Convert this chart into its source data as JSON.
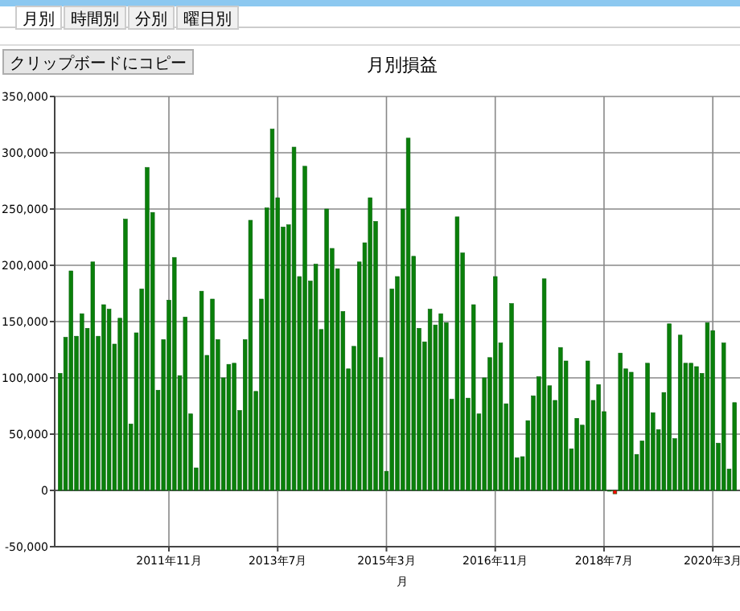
{
  "chart_data": {
    "type": "bar",
    "title": "月別損益",
    "xlabel": "月",
    "annotations": [
      "月別",
      "時間別",
      "分別",
      "曜日別",
      "クリップボードにコピー"
    ],
    "x": [
      "2010-03",
      "2010-04",
      "2010-05",
      "2010-06",
      "2010-07",
      "2010-08",
      "2010-09",
      "2010-10",
      "2010-11",
      "2010-12",
      "2011-01",
      "2011-02",
      "2011-03",
      "2011-04",
      "2011-05",
      "2011-06",
      "2011-07",
      "2011-08",
      "2011-09",
      "2011-10",
      "2011-11",
      "2011-12",
      "2012-01",
      "2012-02",
      "2012-03",
      "2012-04",
      "2012-05",
      "2012-06",
      "2012-07",
      "2012-08",
      "2012-09",
      "2012-10",
      "2012-11",
      "2012-12",
      "2013-01",
      "2013-02",
      "2013-03",
      "2013-04",
      "2013-05",
      "2013-06",
      "2013-07",
      "2013-08",
      "2013-09",
      "2013-10",
      "2013-11",
      "2013-12",
      "2014-01",
      "2014-02",
      "2014-03",
      "2014-04",
      "2014-05",
      "2014-06",
      "2014-07",
      "2014-08",
      "2014-09",
      "2014-10",
      "2014-11",
      "2014-12",
      "2015-01",
      "2015-02",
      "2015-03",
      "2015-04",
      "2015-05",
      "2015-06",
      "2015-07",
      "2015-08",
      "2015-09",
      "2015-10",
      "2015-11",
      "2015-12",
      "2016-01",
      "2016-02",
      "2016-03",
      "2016-04",
      "2016-05",
      "2016-06",
      "2016-07",
      "2016-08",
      "2016-09",
      "2016-10",
      "2016-11",
      "2016-12",
      "2017-01",
      "2017-02",
      "2017-03",
      "2017-04",
      "2017-05",
      "2017-06",
      "2017-07",
      "2017-08",
      "2017-09",
      "2017-10",
      "2017-11",
      "2017-12",
      "2018-01",
      "2018-02",
      "2018-03",
      "2018-04",
      "2018-05",
      "2018-06",
      "2018-07",
      "2018-08",
      "2018-09",
      "2018-10",
      "2018-11",
      "2018-12",
      "2019-01",
      "2019-02",
      "2019-03",
      "2019-04",
      "2019-05",
      "2019-06",
      "2019-07",
      "2019-08",
      "2019-09",
      "2019-10",
      "2019-11",
      "2019-12",
      "2020-01",
      "2020-02",
      "2020-03",
      "2020-04",
      "2020-05",
      "2020-06",
      "2020-07"
    ],
    "values": [
      104000,
      136000,
      195000,
      137000,
      157000,
      144000,
      203000,
      137000,
      165000,
      161000,
      130000,
      153000,
      241000,
      59000,
      140000,
      179000,
      287000,
      247000,
      89000,
      134000,
      169000,
      207000,
      102000,
      154000,
      68000,
      20000,
      177000,
      120000,
      170000,
      134000,
      100000,
      112000,
      113000,
      71000,
      134000,
      240000,
      88000,
      170000,
      251000,
      321000,
      260000,
      234000,
      236000,
      305000,
      190000,
      288000,
      186000,
      201000,
      143000,
      250000,
      215000,
      197000,
      159000,
      108000,
      128000,
      203000,
      220000,
      260000,
      239000,
      118000,
      17000,
      179000,
      190000,
      250000,
      313000,
      208000,
      144000,
      132000,
      161000,
      147000,
      157000,
      149000,
      81000,
      243000,
      211000,
      82000,
      165000,
      68000,
      100000,
      118000,
      190000,
      131000,
      77000,
      166000,
      29000,
      30000,
      62000,
      84000,
      101000,
      188000,
      93000,
      80000,
      127000,
      115000,
      37000,
      64000,
      58000,
      115000,
      80000,
      94000,
      70000,
      0,
      -3000,
      122000,
      108000,
      105000,
      32000,
      44000,
      113000,
      69000,
      54000,
      87000,
      148000,
      46000,
      138000,
      113000,
      113000,
      110000,
      104000,
      149000,
      142000,
      42000,
      131000,
      19000,
      78000
    ],
    "colors": [
      "#0a800a",
      "#0a800a",
      "#0a800a",
      "#0a800a",
      "#0a800a",
      "#0a800a",
      "#0a800a",
      "#0a800a",
      "#0a800a",
      "#0a800a",
      "#0a800a",
      "#0a800a",
      "#0a800a",
      "#0a800a",
      "#0a800a",
      "#0a800a",
      "#0a800a",
      "#0a800a",
      "#0a800a",
      "#0a800a",
      "#0a800a",
      "#0a800a",
      "#0a800a",
      "#0a800a",
      "#0a800a",
      "#0a800a",
      "#0a800a",
      "#0a800a",
      "#0a800a",
      "#0a800a",
      "#0a800a",
      "#0a800a",
      "#0a800a",
      "#0a800a",
      "#0a800a",
      "#0a800a",
      "#0a800a",
      "#0a800a",
      "#0a800a",
      "#0a800a",
      "#0a800a",
      "#0a800a",
      "#0a800a",
      "#0a800a",
      "#0a800a",
      "#0a800a",
      "#0a800a",
      "#0a800a",
      "#0a800a",
      "#0a800a",
      "#0a800a",
      "#0a800a",
      "#0a800a",
      "#0a800a",
      "#0a800a",
      "#0a800a",
      "#0a800a",
      "#0a800a",
      "#0a800a",
      "#0a800a",
      "#0a800a",
      "#0a800a",
      "#0a800a",
      "#0a800a",
      "#0a800a",
      "#0a800a",
      "#0a800a",
      "#0a800a",
      "#0a800a",
      "#0a800a",
      "#0a800a",
      "#0a800a",
      "#0a800a",
      "#0a800a",
      "#0a800a",
      "#0a800a",
      "#0a800a",
      "#0a800a",
      "#0a800a",
      "#0a800a",
      "#0a800a",
      "#0a800a",
      "#0a800a",
      "#0a800a",
      "#0a800a",
      "#0a800a",
      "#0a800a",
      "#0a800a",
      "#0a800a",
      "#0a800a",
      "#0a800a",
      "#0a800a",
      "#0a800a",
      "#0a800a",
      "#0a800a",
      "#0a800a",
      "#0a800a",
      "#0a800a",
      "#0a800a",
      "#0a800a",
      "#0a800a",
      "#0a800a",
      "#ff0000",
      "#0a800a",
      "#0a800a",
      "#0a800a",
      "#0a800a",
      "#0a800a",
      "#0a800a",
      "#0a800a",
      "#0a800a",
      "#0a800a",
      "#0a800a",
      "#0a800a",
      "#0a800a",
      "#0a800a",
      "#0a800a",
      "#0a800a",
      "#0a800a",
      "#0a800a",
      "#0a800a",
      "#0a800a",
      "#0a800a",
      "#0a800a",
      "#0a800a"
    ],
    "xlim": [
      "2010-02",
      "2020-08"
    ],
    "xticks": [
      {
        "value": "2011-11",
        "label": "2011年11月"
      },
      {
        "value": "2013-07",
        "label": "2013年7月"
      },
      {
        "value": "2015-03",
        "label": "2015年3月"
      },
      {
        "value": "2016-11",
        "label": "2016年11月"
      },
      {
        "value": "2018-07",
        "label": "2018年7月"
      },
      {
        "value": "2020-03",
        "label": "2020年3月"
      }
    ],
    "ylim": [
      -50000,
      350000
    ],
    "yticks": [
      {
        "value": -50000,
        "label": "-50,000"
      },
      {
        "value": 0,
        "label": "0"
      },
      {
        "value": 50000,
        "label": "50,000"
      },
      {
        "value": 100000,
        "label": "100,000"
      },
      {
        "value": 150000,
        "label": "150,000"
      },
      {
        "value": 200000,
        "label": "200,000"
      },
      {
        "value": 250000,
        "label": "250,000"
      },
      {
        "value": 300000,
        "label": "300,000"
      },
      {
        "value": 350000,
        "label": "350,000"
      }
    ],
    "grid": true
  }
}
